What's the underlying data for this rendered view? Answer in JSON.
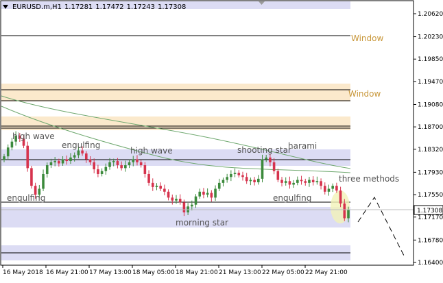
{
  "header": {
    "symbol": "EURUSD.m,H1",
    "open": "1.17281",
    "high": "1.17472",
    "low": "1.17243",
    "close": "1.17308"
  },
  "colors": {
    "bull": "#3c8a3c",
    "bear": "#d6334d",
    "zone_blue": "#dcdcf4",
    "zone_orange": "#fbe9cc",
    "ma": "#6fa86f",
    "window_label": "#c8973a",
    "price_tag_bg": "#ffffff",
    "highlight": "#f2f2b8"
  },
  "window_labels": [
    "Window",
    "Window"
  ],
  "patterns": {
    "high_wave_1": "high wave",
    "engulfing_1": "engulfing",
    "high_wave_2": "high wave",
    "shooting_star": "shooting star",
    "harami": "harami",
    "three_methods": "three methods",
    "engulfing_2": "engulfing",
    "engulfing_3": "engulfing",
    "morning_star": "morning star"
  },
  "price_axis": {
    "ticks": [
      "1.20620",
      "1.20230",
      "1.19850",
      "1.19470",
      "1.19080",
      "1.18700",
      "1.18320",
      "1.17930",
      "1.17550",
      "1.17170",
      "1.16780",
      "1.16400"
    ],
    "current": "1.17308"
  },
  "time_axis": [
    "16 May 2018",
    "16 May 21:00",
    "17 May 13:00",
    "18 May 05:00",
    "18 May 21:00",
    "21 May 13:00",
    "22 May 05:00",
    "22 May 21:00"
  ],
  "chart_data": {
    "type": "candlestick",
    "symbol": "EURUSD.m",
    "timeframe": "H1",
    "ylim": [
      1.1625,
      1.2085
    ],
    "levels": [
      1.2026,
      1.194,
      1.1917,
      1.1873,
      1.1868,
      1.182,
      1.1745
    ],
    "close_series": [
      1.182,
      1.1835,
      1.1845,
      1.1855,
      1.185,
      1.1838,
      1.18,
      1.177,
      1.1755,
      1.1765,
      1.179,
      1.1805,
      1.181,
      1.1812,
      1.1808,
      1.1815,
      1.1812,
      1.1818,
      1.1822,
      1.183,
      1.1825,
      1.1815,
      1.181,
      1.1798,
      1.179,
      1.1795,
      1.1802,
      1.181,
      1.1812,
      1.1805,
      1.18,
      1.1805,
      1.181,
      1.1815,
      1.181,
      1.1805,
      1.179,
      1.1775,
      1.1768,
      1.177,
      1.1765,
      1.176,
      1.175,
      1.1745,
      1.1748,
      1.1742,
      1.1725,
      1.1735,
      1.1738,
      1.1752,
      1.176,
      1.1755,
      1.1758,
      1.175,
      1.1765,
      1.1775,
      1.178,
      1.1785,
      1.179,
      1.1792,
      1.1788,
      1.1785,
      1.1778,
      1.178,
      1.1776,
      1.1782,
      1.1815,
      1.1818,
      1.181,
      1.1795,
      1.178,
      1.1775,
      1.1778,
      1.1772,
      1.1775,
      1.178,
      1.1778,
      1.1775,
      1.178,
      1.1776,
      1.1778,
      1.177,
      1.176,
      1.1765,
      1.177,
      1.1762,
      1.174,
      1.1715,
      1.173
    ]
  }
}
